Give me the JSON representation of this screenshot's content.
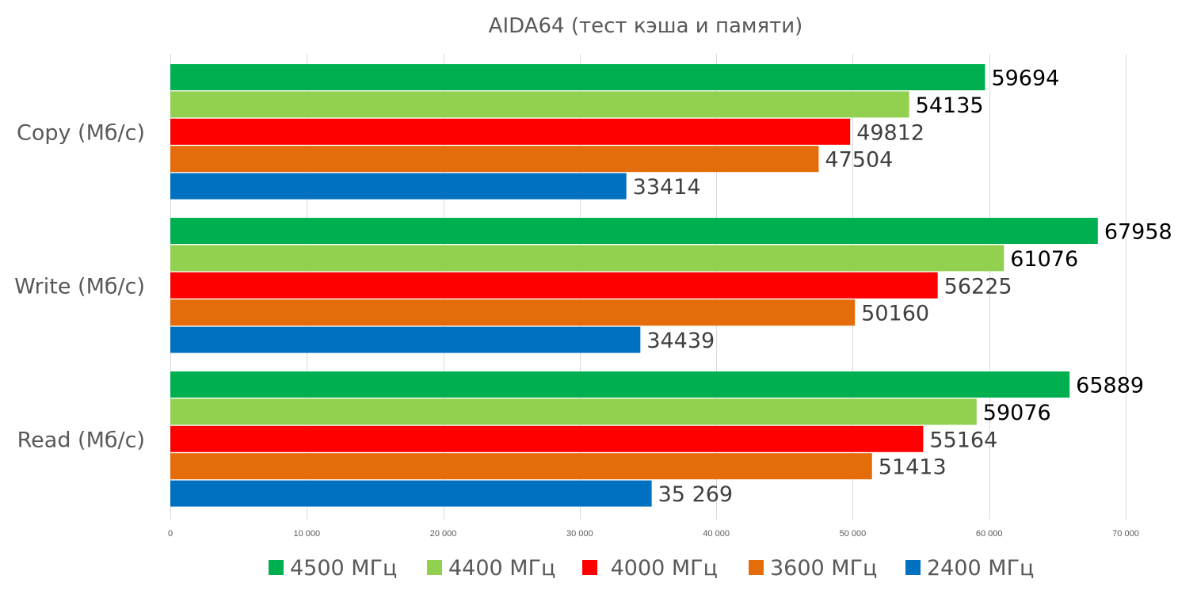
{
  "chart_data": {
    "type": "bar",
    "orientation": "horizontal",
    "title": "AIDA64 (тест кэша и памяти)",
    "categories": [
      "Copy (Мб/с)",
      "Write (Мб/с)",
      "Read (Мб/с)"
    ],
    "xlim": [
      0,
      70000
    ],
    "xticks": [
      0,
      10000,
      20000,
      30000,
      40000,
      50000,
      60000,
      70000
    ],
    "xtick_labels": [
      "0",
      "10 000",
      "20 000",
      "30 000",
      "40 000",
      "50 000",
      "60 000",
      "70 000"
    ],
    "grid": true,
    "legend_position": "bottom",
    "series": [
      {
        "name": "4500 МГц",
        "color": "#00b050",
        "values": [
          59694,
          67958,
          65889
        ],
        "labels": [
          "59694",
          "67958",
          "65889"
        ],
        "label_color": "#000000"
      },
      {
        "name": "4400 МГц",
        "color": "#92d050",
        "values": [
          54135,
          61076,
          59076
        ],
        "labels": [
          "54135",
          "61076",
          "59076"
        ],
        "label_color": "#000000"
      },
      {
        "name": " 4000 МГц",
        "color": "#ff0000",
        "values": [
          49812,
          56225,
          55164
        ],
        "labels": [
          "49812",
          "56225",
          "55164"
        ],
        "label_color": "#404040"
      },
      {
        "name": "3600 МГц",
        "color": "#e46c0a",
        "values": [
          47504,
          50160,
          51413
        ],
        "labels": [
          "47504",
          "50160",
          "51413"
        ],
        "label_color": "#404040"
      },
      {
        "name": "2400 МГц",
        "color": "#0070c0",
        "values": [
          33414,
          34439,
          35269
        ],
        "labels": [
          "33414",
          "34439",
          "35 269"
        ],
        "label_color": "#404040"
      }
    ]
  }
}
